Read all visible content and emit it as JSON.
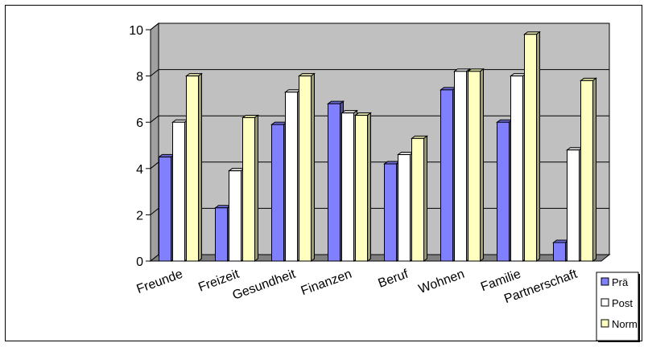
{
  "chart_data": {
    "type": "bar",
    "categories": [
      "Freunde",
      "Freizeit",
      "Gesundheit",
      "Finanzen",
      "Beruf",
      "Wohnen",
      "Familie",
      "Partnerschaft"
    ],
    "series": [
      {
        "name": "Prä",
        "color": "#8080ff",
        "values": [
          4.5,
          2.3,
          5.9,
          6.8,
          4.2,
          7.4,
          6.0,
          0.8
        ]
      },
      {
        "name": "Post",
        "color": "#ffffff",
        "values": [
          6.0,
          3.9,
          7.3,
          6.4,
          4.6,
          8.2,
          8.0,
          4.8
        ]
      },
      {
        "name": "Norm",
        "color": "#ffffc0",
        "values": [
          8.0,
          6.2,
          8.0,
          6.3,
          5.3,
          8.2,
          9.8,
          7.8
        ]
      }
    ],
    "yticks": [
      "0",
      "2",
      "4",
      "6",
      "8",
      "10"
    ],
    "ylim": [
      0,
      10
    ],
    "grid": true,
    "legend": "right",
    "wall_color": "#c0c0c0"
  }
}
